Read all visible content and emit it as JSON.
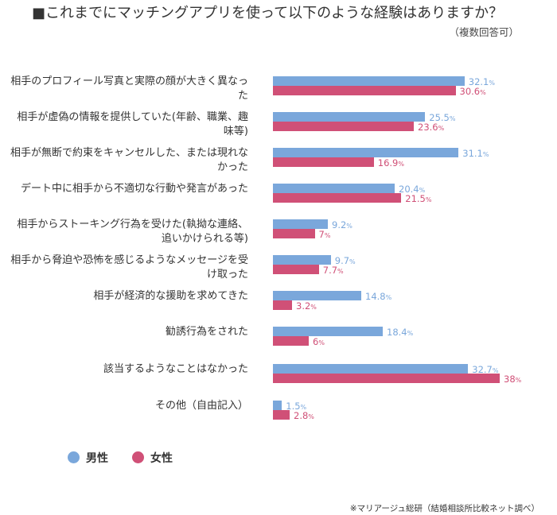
{
  "chart_data": {
    "type": "bar",
    "orientation": "horizontal",
    "title": "■これまでにマッチングアプリを使って以下のような経験はありますか？",
    "subtitle": "（複数回答可）",
    "categories": [
      "相手のプロフィール写真と実際の顔が大きく異なった",
      "相手が虚偽の情報を提供していた(年齢、職業、趣味等)",
      "相手が無断で約束をキャンセルした、または現れなかった",
      "デート中に相手から不適切な行動や発言があった",
      "相手からストーキング行為を受けた(執拗な連絡、追いかけられる等)",
      "相手から脅迫や恐怖を感じるようなメッセージを受け取った",
      "相手が経済的な援助を求めてきた",
      "勧誘行為をされた",
      "該当するようなことはなかった",
      "その他（自由記入）"
    ],
    "series": [
      {
        "name": "男性",
        "color": "#7aa7db",
        "values": [
          32.1,
          25.5,
          31.1,
          20.4,
          9.2,
          9.7,
          14.8,
          18.4,
          32.7,
          1.5
        ],
        "labels": [
          "32.1",
          "25.5",
          "31.1",
          "20.4",
          "9.2",
          "9.7",
          "14.8",
          "18.4",
          "32.7",
          "1.5"
        ]
      },
      {
        "name": "女性",
        "color": "#d05077",
        "values": [
          30.6,
          23.6,
          16.9,
          21.5,
          7,
          7.7,
          3.2,
          6,
          38,
          2.8
        ],
        "labels": [
          "30.6",
          "23.6",
          "16.9",
          "21.5",
          "7",
          "7.7",
          "3.2",
          "6",
          "38",
          "2.8"
        ]
      }
    ],
    "unit": "%",
    "xlim": [
      0,
      40
    ],
    "grid": false,
    "legend": "bottom-left"
  },
  "source": "※マリアージュ総研（結婚相談所比較ネット調べ）"
}
